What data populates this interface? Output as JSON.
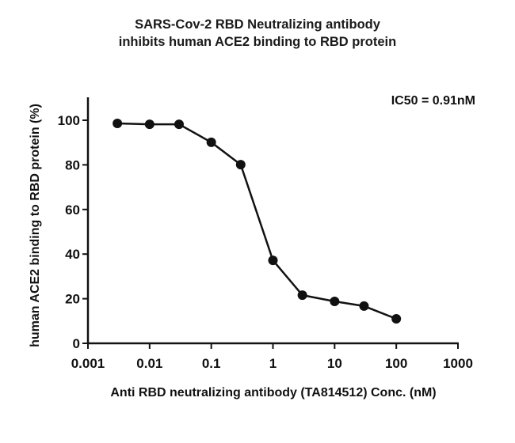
{
  "chart_data": {
    "type": "line",
    "title": "SARS-Cov-2 RBD Neutralizing antibody inhibits human ACE2 binding to RBD protein",
    "title_lines": [
      "SARS-Cov-2 RBD Neutralizing antibody",
      "inhibits human ACE2 binding to RBD protein"
    ],
    "xlabel": "Anti RBD neutralizing antibody (TA814512) Conc. (nM)",
    "ylabel": "human ACE2 binding to RBD protein (%)",
    "xscale": "log",
    "xlim": [
      0.001,
      1000
    ],
    "ylim": [
      0,
      110
    ],
    "xticks": [
      "0.001",
      "0.01",
      "0.1",
      "1",
      "10",
      "100",
      "1000"
    ],
    "yticks": [
      "0",
      "20",
      "40",
      "60",
      "80",
      "100"
    ],
    "grid": false,
    "legend": null,
    "annotations": [
      "IC50 = 0.91nM"
    ],
    "series": [
      {
        "name": "TA814512",
        "x": [
          0.003,
          0.01,
          0.03,
          0.1,
          0.3,
          1,
          3,
          10,
          30,
          100
        ],
        "values": [
          98.6,
          98.2,
          98.2,
          90.1,
          80.1,
          37.2,
          21.6,
          18.8,
          16.7,
          11.0
        ]
      }
    ]
  },
  "annotation": {
    "ic50": "IC50 = 0.91nM"
  }
}
